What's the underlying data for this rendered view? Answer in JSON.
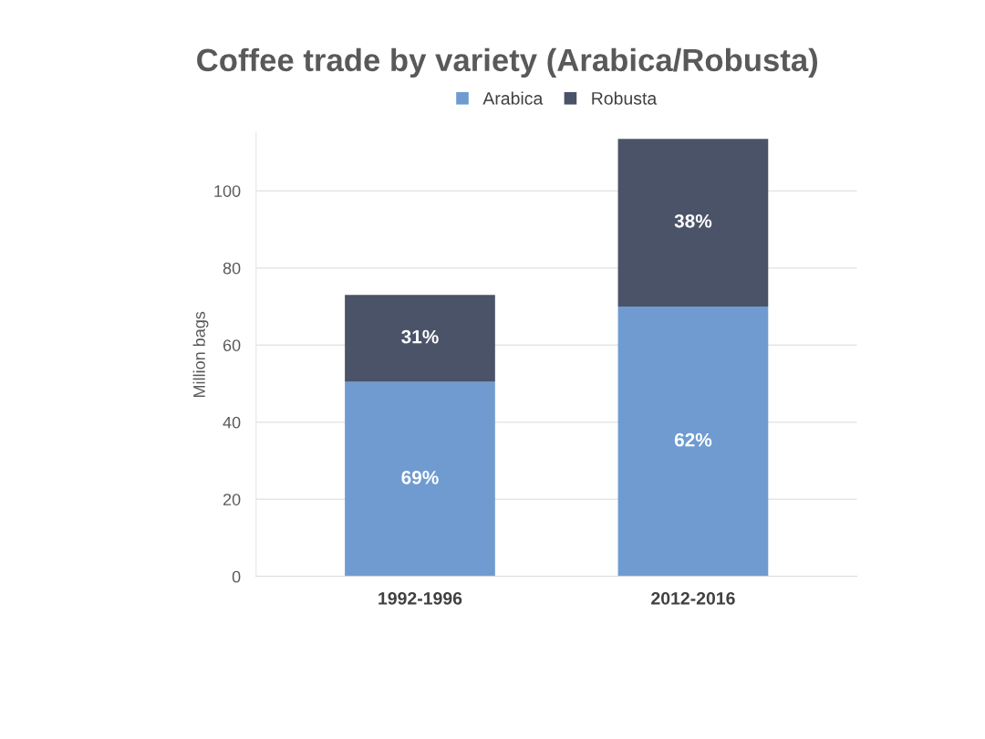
{
  "chart_data": {
    "type": "bar",
    "title": "Coffee trade by variety (Arabica/Robusta)",
    "ylabel": "Million bags",
    "categories": [
      "1992-1996",
      "2012-2016"
    ],
    "stacked": true,
    "series": [
      {
        "name": "Arabica",
        "color": "#6f9bd1",
        "values": [
          50.5,
          70
        ]
      },
      {
        "name": "Robusta",
        "color": "#4b5368",
        "values": [
          22.5,
          43.5
        ]
      }
    ],
    "annotations": [
      "69%",
      "62%",
      "31%",
      "38%"
    ],
    "ylim": [
      0,
      115
    ],
    "yticks": [
      0,
      20,
      40,
      60,
      80,
      100
    ],
    "grid": "y",
    "legend": "top"
  }
}
